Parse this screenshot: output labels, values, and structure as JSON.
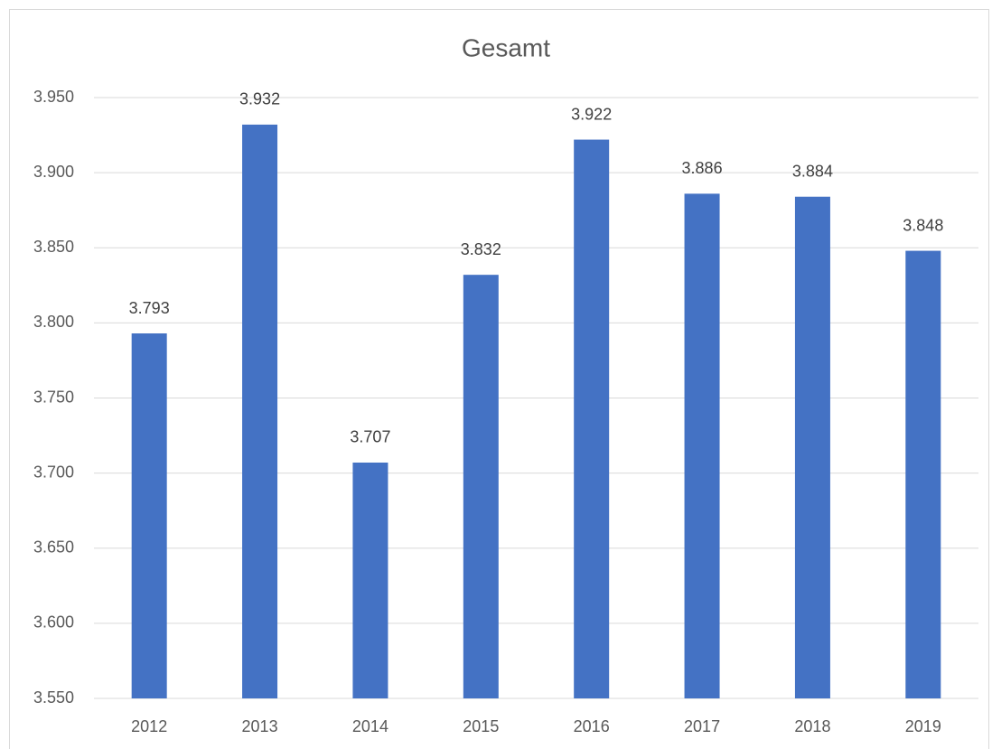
{
  "chart_data": {
    "type": "bar",
    "title": "Gesamt",
    "categories": [
      "2012",
      "2013",
      "2014",
      "2015",
      "2016",
      "2017",
      "2018",
      "2019"
    ],
    "values": [
      3793,
      3932,
      3707,
      3832,
      3922,
      3886,
      3884,
      3848
    ],
    "value_labels": [
      "3.793",
      "3.932",
      "3.707",
      "3.832",
      "3.922",
      "3.886",
      "3.884",
      "3.848"
    ],
    "color": "#4472c4",
    "ylim": [
      3550,
      3950
    ],
    "yticks": [
      {
        "value": 3550,
        "label": "3.550"
      },
      {
        "value": 3600,
        "label": "3.600"
      },
      {
        "value": 3650,
        "label": "3.650"
      },
      {
        "value": 3700,
        "label": "3.700"
      },
      {
        "value": 3750,
        "label": "3.750"
      },
      {
        "value": 3800,
        "label": "3.800"
      },
      {
        "value": 3850,
        "label": "3.850"
      },
      {
        "value": 3900,
        "label": "3.900"
      },
      {
        "value": 3950,
        "label": "3.950"
      }
    ],
    "grid": true
  }
}
